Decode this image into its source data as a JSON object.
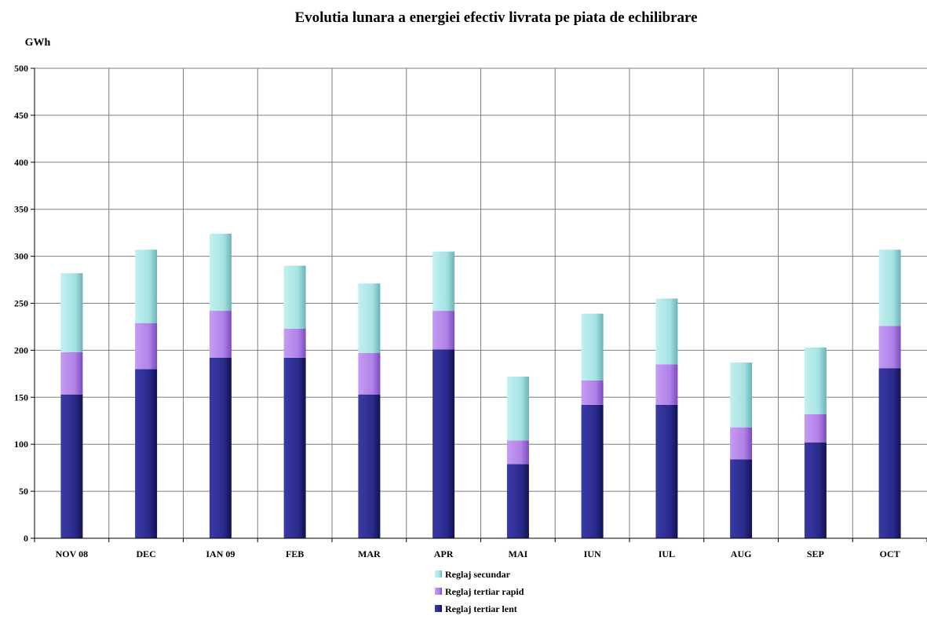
{
  "chart_data": {
    "type": "bar",
    "stacked": true,
    "title": "Evolutia lunara a energiei efectiv livrata pe piata de echilibrare",
    "ylabel": "GWh",
    "xlabel": "",
    "ylim": [
      0,
      500
    ],
    "yticks": [
      0,
      50,
      100,
      150,
      200,
      250,
      300,
      350,
      400,
      450,
      500
    ],
    "grid": true,
    "legend_position": "bottom",
    "categories": [
      "NOV 08",
      "DEC",
      "IAN 09",
      "FEB",
      "MAR",
      "APR",
      "MAI",
      "IUN",
      "IUL",
      "AUG",
      "SEP",
      "OCT"
    ],
    "series": [
      {
        "name": "Reglaj tertiar lent",
        "color": "#2b2b8a",
        "values": [
          153,
          180,
          192,
          192,
          153,
          201,
          79,
          142,
          142,
          84,
          102,
          181
        ]
      },
      {
        "name": "Reglaj tertiar rapid",
        "color": "#b084e6",
        "values": [
          45,
          49,
          50,
          31,
          44,
          41,
          25,
          26,
          43,
          34,
          30,
          45
        ]
      },
      {
        "name": "Reglaj secundar",
        "color": "#a8e4e4",
        "values": [
          84,
          78,
          82,
          67,
          74,
          63,
          68,
          71,
          70,
          69,
          71,
          81
        ]
      }
    ]
  }
}
